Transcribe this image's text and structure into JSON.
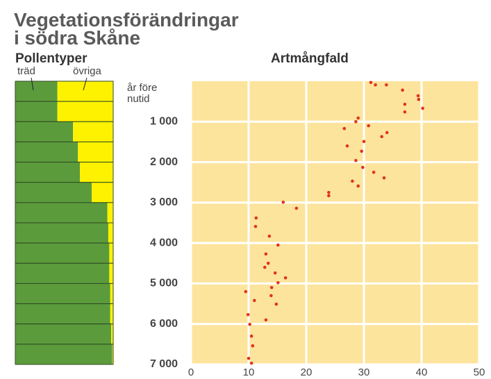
{
  "title": [
    "Vegetationsförändringar",
    "i södra Skåne"
  ],
  "chart_data": [
    {
      "type": "stacked-barh",
      "title": "Pollentyper",
      "categories": [
        null,
        null,
        null,
        null,
        null,
        null,
        null,
        null,
        null,
        null,
        null,
        null,
        null,
        null
      ],
      "xlim": [
        0,
        100
      ],
      "series": [
        {
          "name": "träd",
          "color": "#5b9b3c",
          "values": [
            43,
            43,
            59,
            64,
            66,
            78,
            94,
            95,
            96,
            96,
            97,
            97,
            98,
            99
          ]
        },
        {
          "name": "övriga",
          "color": "#fff200",
          "values": [
            57,
            57,
            41,
            36,
            34,
            22,
            6,
            5,
            4,
            4,
            3,
            3,
            2,
            1
          ]
        }
      ]
    },
    {
      "type": "scatter",
      "title": "Artmångfald",
      "ylabel": [
        "år före",
        "nutid"
      ],
      "color": "#e2331f",
      "grid": true,
      "yinverted": true,
      "xlim": [
        0,
        50
      ],
      "xticks": [
        0,
        10,
        20,
        30,
        40,
        50
      ],
      "ylim": [
        0,
        7000
      ],
      "yticks": [
        {
          "value": 1000,
          "label": "1 000"
        },
        {
          "value": 2000,
          "label": "2 000"
        },
        {
          "value": 3000,
          "label": "3 000"
        },
        {
          "value": 4000,
          "label": "4 000"
        },
        {
          "value": 5000,
          "label": "5 000"
        },
        {
          "value": 6000,
          "label": "6 000"
        },
        {
          "value": 7000,
          "label": "7 000"
        }
      ],
      "x": [
        31.2,
        32.0,
        33.9,
        36.7,
        39.4,
        39.5,
        40.2,
        37.1,
        37.1,
        29.0,
        28.6,
        30.8,
        26.6,
        34.0,
        33.1,
        30.0,
        27.1,
        29.6,
        28.6,
        29.8,
        31.7,
        33.5,
        28.0,
        29.0,
        23.9,
        23.9,
        16.0,
        18.3,
        11.3,
        11.2,
        13.6,
        15.1,
        13.0,
        13.4,
        12.8,
        14.6,
        16.4,
        15.1,
        14.0,
        9.5,
        13.9,
        11.0,
        14.8,
        9.9,
        13.0,
        10.2,
        10.5,
        10.7,
        10.0,
        10.5
      ],
      "y": [
        30,
        90,
        90,
        220,
        360,
        450,
        670,
        570,
        760,
        910,
        1000,
        1100,
        1170,
        1270,
        1370,
        1490,
        1600,
        1730,
        1960,
        2130,
        2250,
        2390,
        2470,
        2590,
        2750,
        2830,
        2990,
        3140,
        3380,
        3590,
        3830,
        4050,
        4270,
        4500,
        4600,
        4740,
        4860,
        4980,
        5100,
        5200,
        5300,
        5420,
        5510,
        5770,
        5900,
        6010,
        6300,
        6540,
        6850,
        6970
      ]
    }
  ]
}
